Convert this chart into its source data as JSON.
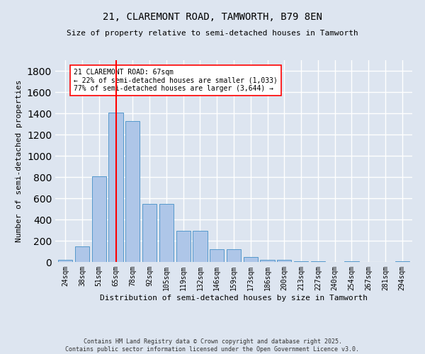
{
  "title1": "21, CLAREMONT ROAD, TAMWORTH, B79 8EN",
  "title2": "Size of property relative to semi-detached houses in Tamworth",
  "xlabel": "Distribution of semi-detached houses by size in Tamworth",
  "ylabel": "Number of semi-detached properties",
  "bar_labels": [
    "24sqm",
    "38sqm",
    "51sqm",
    "65sqm",
    "78sqm",
    "92sqm",
    "105sqm",
    "119sqm",
    "132sqm",
    "146sqm",
    "159sqm",
    "173sqm",
    "186sqm",
    "200sqm",
    "213sqm",
    "227sqm",
    "240sqm",
    "254sqm",
    "267sqm",
    "281sqm",
    "294sqm"
  ],
  "bar_values": [
    20,
    150,
    810,
    1410,
    1330,
    550,
    550,
    295,
    295,
    120,
    120,
    50,
    20,
    20,
    5,
    5,
    0,
    5,
    0,
    0,
    10
  ],
  "bar_color": "#aec6e8",
  "bar_edgecolor": "#5599cc",
  "property_bar_index": 3,
  "vline_color": "red",
  "annotation_text": "21 CLAREMONT ROAD: 67sqm\n← 22% of semi-detached houses are smaller (1,033)\n77% of semi-detached houses are larger (3,644) →",
  "annotation_box_edgecolor": "red",
  "annotation_box_facecolor": "white",
  "footer_text": "Contains HM Land Registry data © Crown copyright and database right 2025.\nContains public sector information licensed under the Open Government Licence v3.0.",
  "ylim": [
    0,
    1900
  ],
  "background_color": "#dde5f0",
  "grid_color": "white"
}
